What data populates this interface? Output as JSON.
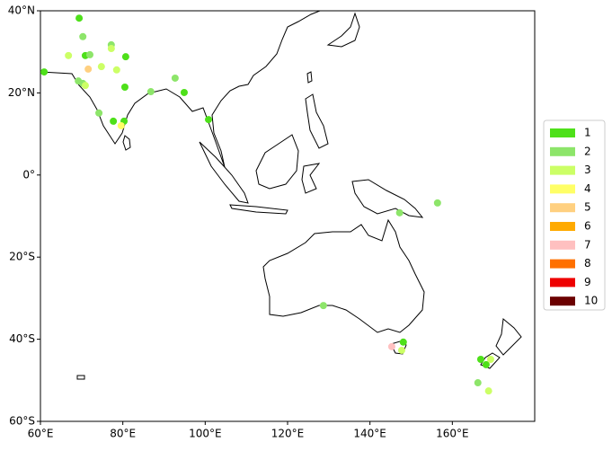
{
  "chart_data": {
    "type": "scatter",
    "xlim": [
      60,
      180
    ],
    "ylim": [
      -60,
      40
    ],
    "xticks": [
      {
        "value": 60,
        "label": "60°E"
      },
      {
        "value": 80,
        "label": "80°E"
      },
      {
        "value": 100,
        "label": "100°E"
      },
      {
        "value": 120,
        "label": "120°E"
      },
      {
        "value": 140,
        "label": "140°E"
      },
      {
        "value": 160,
        "label": "160°E"
      }
    ],
    "yticks": [
      {
        "value": 40,
        "label": "40°N"
      },
      {
        "value": 20,
        "label": "20°N"
      },
      {
        "value": 0,
        "label": "0°"
      },
      {
        "value": -20,
        "label": "20°S"
      },
      {
        "value": -40,
        "label": "40°S"
      },
      {
        "value": -60,
        "label": "60°S"
      }
    ],
    "series": [
      {
        "name": "1",
        "color": "#4ee01a",
        "x": [
          60.9,
          69.4,
          70.9,
          80.7,
          80.5,
          94.9,
          77.7,
          80.3,
          100.8,
          148.1,
          166.9,
          168.2
        ],
        "y": [
          25.1,
          38.2,
          29.1,
          28.8,
          21.4,
          20.1,
          13.1,
          13.1,
          13.5,
          -40.7,
          -44.9,
          -46.2
        ]
      },
      {
        "name": "2",
        "color": "#8de56a",
        "x": [
          70.3,
          72.0,
          77.2,
          69.2,
          70.3,
          86.8,
          92.7,
          74.2,
          147.2,
          156.4,
          128.7,
          166.2
        ],
        "y": [
          33.7,
          29.3,
          31.7,
          22.9,
          22.3,
          20.3,
          23.6,
          15.1,
          -9.2,
          -6.8,
          -31.8,
          -50.6
        ]
      },
      {
        "name": "3",
        "color": "#ccff66",
        "x": [
          66.8,
          77.2,
          74.8,
          78.5,
          70.9,
          147.7,
          169.3,
          168.8
        ],
        "y": [
          29.1,
          30.8,
          26.4,
          25.6,
          21.8,
          -42.7,
          -44.9,
          -52.6
        ]
      },
      {
        "name": "4",
        "color": "#ffff66",
        "x": [
          79.6
        ],
        "y": [
          12.0
        ]
      },
      {
        "name": "5",
        "color": "#ffd080",
        "x": [
          71.6
        ],
        "y": [
          25.8
        ]
      },
      {
        "name": "6",
        "color": "#ffaa00",
        "x": [],
        "y": []
      },
      {
        "name": "7",
        "color": "#ffc0c0",
        "x": [
          145.3
        ],
        "y": [
          -41.8
        ]
      },
      {
        "name": "8",
        "color": "#ff7000",
        "x": [],
        "y": []
      },
      {
        "name": "9",
        "color": "#ee0000",
        "x": [],
        "y": []
      },
      {
        "name": "10",
        "color": "#6b0000",
        "x": [],
        "y": []
      }
    ]
  }
}
